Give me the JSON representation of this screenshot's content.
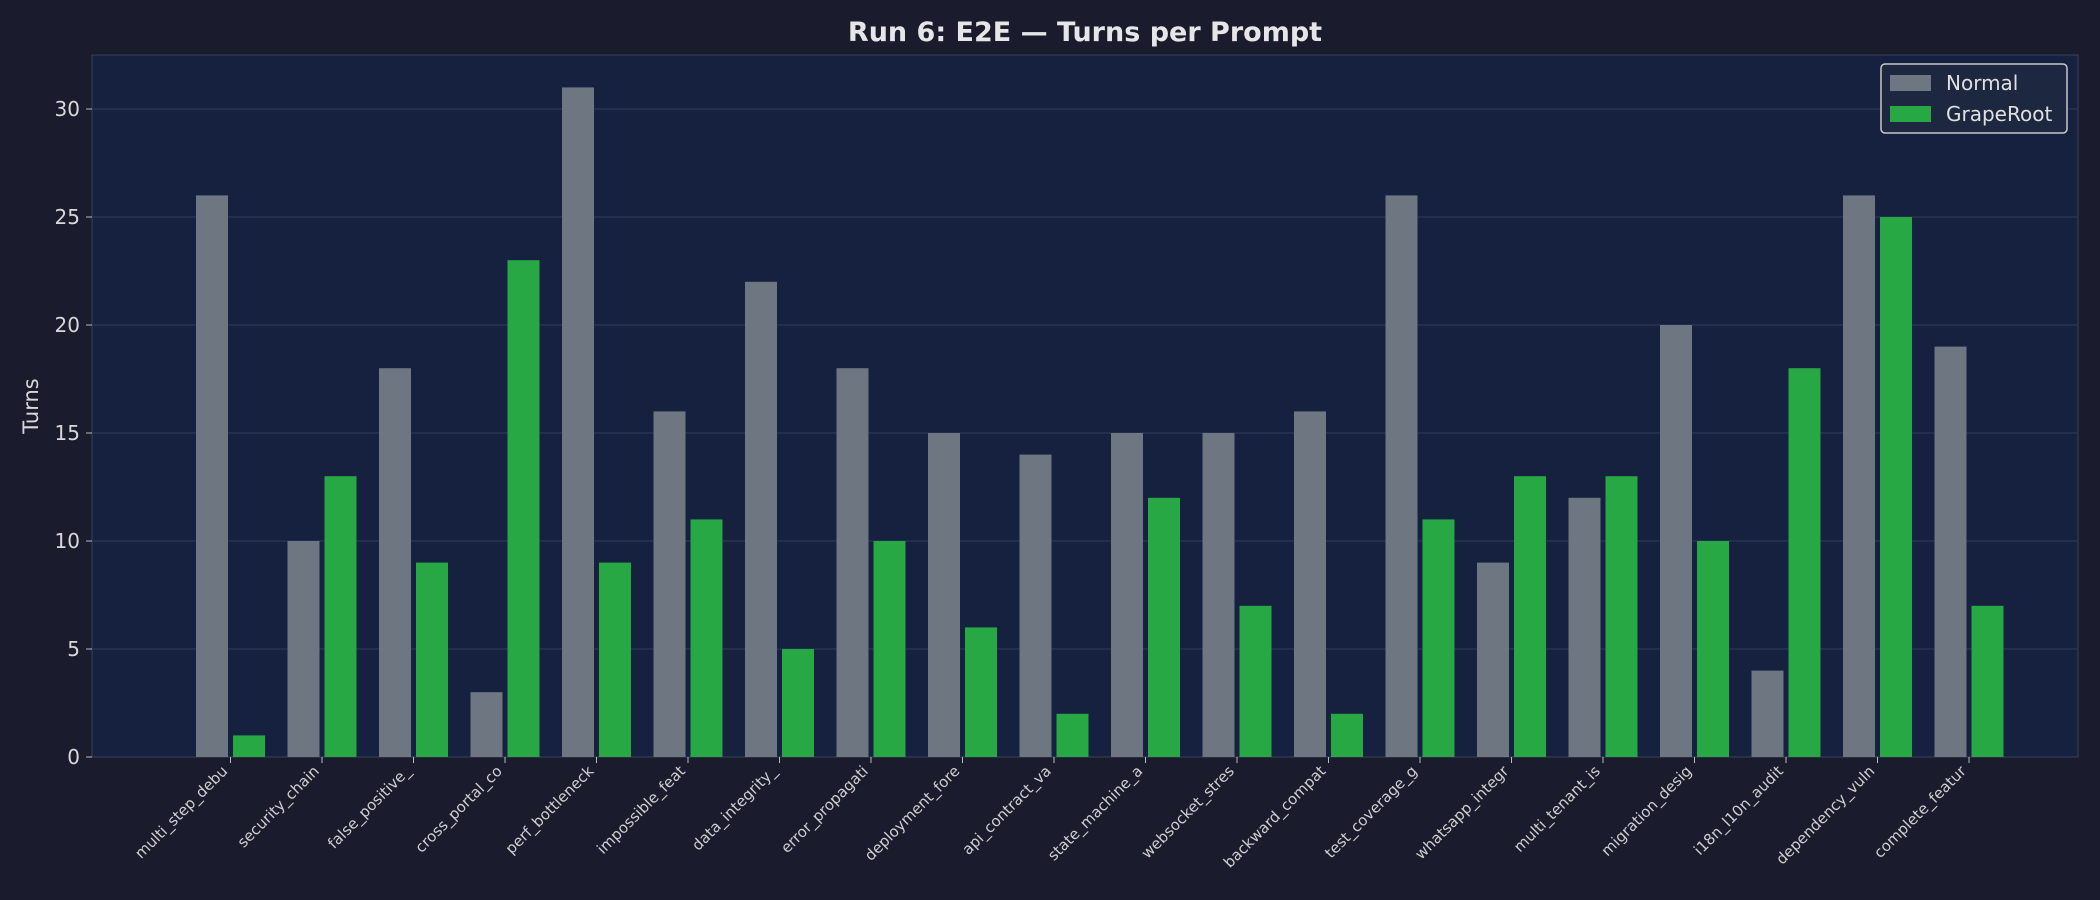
{
  "chart_data": {
    "type": "bar",
    "title": "Run 6: E2E — Turns per Prompt",
    "xlabel": "",
    "ylabel": "Turns",
    "ylim": [
      0,
      32.5
    ],
    "yticks": [
      0,
      5,
      10,
      15,
      20,
      25,
      30
    ],
    "grid": true,
    "legend_position": "top-right",
    "categories": [
      "multi_step_debu",
      "security_chain",
      "false_positive_",
      "cross_portal_co",
      "perf_bottleneck",
      "impossible_feat",
      "data_integrity_",
      "error_propagati",
      "deployment_fore",
      "api_contract_va",
      "state_machine_a",
      "websocket_stres",
      "backward_compat",
      "test_coverage_g",
      "whatsapp_integr",
      "multi_tenant_is",
      "migration_desig",
      "i18n_l10n_audit",
      "dependency_vuln",
      "complete_featur"
    ],
    "series": [
      {
        "name": "Normal",
        "color": "#6e7681",
        "values": [
          26,
          10,
          18,
          3,
          31,
          16,
          22,
          18,
          15,
          14,
          15,
          15,
          16,
          26,
          9,
          12,
          20,
          4,
          26,
          19
        ]
      },
      {
        "name": "GrapeRoot",
        "color": "#28a745",
        "values": [
          1,
          13,
          9,
          23,
          9,
          11,
          5,
          10,
          6,
          2,
          12,
          7,
          2,
          11,
          13,
          13,
          10,
          18,
          25,
          7
        ]
      }
    ]
  }
}
